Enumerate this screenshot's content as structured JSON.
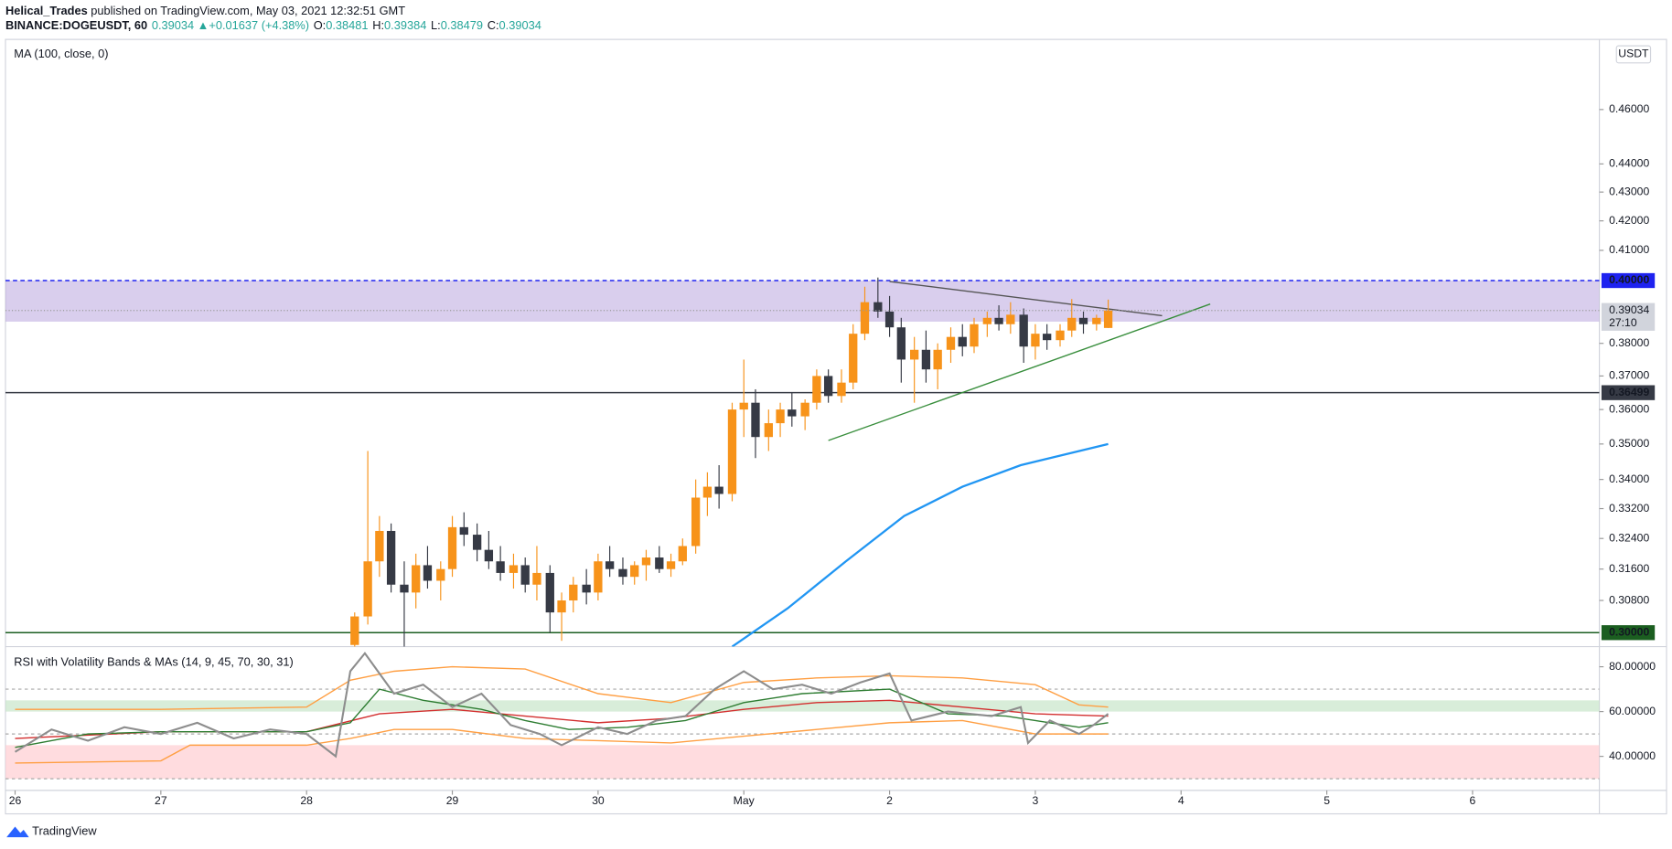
{
  "header": {
    "author": "Helical_Trades",
    "published": " published on TradingView.com, May 03, 2021 12:32:51 GMT",
    "symbol": "BINANCE:DOGEUSDT, 60",
    "arrow": "▲",
    "change": "+0.01637 (+4.38%)",
    "o": "O:",
    "h": "H:",
    "l": "L:",
    "c": "C:"
  },
  "footer": "TradingView",
  "chart_data": [
    {
      "type": "candlestick",
      "legend": "MA (100, close, 0)",
      "currency": "USDT",
      "countdown": "27:10",
      "log_scale": true,
      "x": [
        2.33,
        2.42,
        2.5,
        2.58,
        2.67,
        2.75,
        2.83,
        2.92,
        3,
        3.08,
        3.17,
        3.25,
        3.33,
        3.42,
        3.5,
        3.58,
        3.67,
        3.75,
        3.83,
        3.92,
        4,
        4.08,
        4.17,
        4.25,
        4.33,
        4.42,
        4.5,
        4.58,
        4.67,
        4.75,
        4.83,
        4.92,
        5,
        5.08,
        5.17,
        5.25,
        5.33,
        5.42,
        5.5,
        5.58,
        5.67,
        5.75,
        5.83,
        5.92,
        6,
        6.08,
        6.17,
        6.25,
        6.33,
        6.42,
        6.5,
        6.58,
        6.67,
        6.75,
        6.83,
        6.92,
        7,
        7.08,
        7.17,
        7.25,
        7.33,
        7.42,
        7.5
      ],
      "open": [
        0.297,
        0.304,
        0.318,
        0.326,
        0.312,
        0.31,
        0.317,
        0.313,
        0.316,
        0.327,
        0.325,
        0.321,
        0.318,
        0.315,
        0.317,
        0.312,
        0.315,
        0.305,
        0.308,
        0.312,
        0.31,
        0.318,
        0.316,
        0.314,
        0.317,
        0.319,
        0.316,
        0.318,
        0.322,
        0.335,
        0.338,
        0.336,
        0.36,
        0.362,
        0.352,
        0.356,
        0.36,
        0.358,
        0.362,
        0.37,
        0.364,
        0.368,
        0.383,
        0.393,
        0.39,
        0.385,
        0.375,
        0.378,
        0.372,
        0.378,
        0.382,
        0.379,
        0.386,
        0.388,
        0.386,
        0.389,
        0.379,
        0.383,
        0.381,
        0.384,
        0.388,
        0.386,
        0.38481
      ],
      "high": [
        0.305,
        0.348,
        0.33,
        0.328,
        0.318,
        0.32,
        0.322,
        0.318,
        0.33,
        0.331,
        0.328,
        0.326,
        0.322,
        0.32,
        0.319,
        0.322,
        0.317,
        0.31,
        0.314,
        0.316,
        0.32,
        0.322,
        0.319,
        0.318,
        0.321,
        0.322,
        0.32,
        0.324,
        0.34,
        0.342,
        0.344,
        0.362,
        0.375,
        0.366,
        0.36,
        0.362,
        0.365,
        0.363,
        0.372,
        0.372,
        0.372,
        0.386,
        0.398,
        0.401,
        0.395,
        0.388,
        0.382,
        0.384,
        0.38,
        0.385,
        0.386,
        0.388,
        0.39,
        0.392,
        0.393,
        0.391,
        0.386,
        0.386,
        0.386,
        0.394,
        0.39,
        0.389,
        0.39384
      ],
      "low": [
        0.296,
        0.302,
        0.314,
        0.31,
        0.296,
        0.306,
        0.311,
        0.308,
        0.314,
        0.322,
        0.318,
        0.316,
        0.313,
        0.311,
        0.31,
        0.308,
        0.3,
        0.298,
        0.305,
        0.307,
        0.308,
        0.314,
        0.312,
        0.312,
        0.313,
        0.315,
        0.314,
        0.317,
        0.32,
        0.33,
        0.332,
        0.334,
        0.352,
        0.346,
        0.348,
        0.352,
        0.355,
        0.354,
        0.36,
        0.362,
        0.362,
        0.366,
        0.381,
        0.388,
        0.382,
        0.368,
        0.362,
        0.368,
        0.366,
        0.374,
        0.376,
        0.377,
        0.382,
        0.384,
        0.383,
        0.374,
        0.375,
        0.378,
        0.379,
        0.382,
        0.383,
        0.384,
        0.38479
      ],
      "close": [
        0.304,
        0.318,
        0.326,
        0.312,
        0.31,
        0.317,
        0.313,
        0.316,
        0.327,
        0.325,
        0.321,
        0.318,
        0.315,
        0.317,
        0.312,
        0.315,
        0.305,
        0.308,
        0.312,
        0.31,
        0.318,
        0.316,
        0.314,
        0.317,
        0.319,
        0.316,
        0.318,
        0.322,
        0.335,
        0.338,
        0.336,
        0.36,
        0.362,
        0.352,
        0.356,
        0.36,
        0.358,
        0.362,
        0.37,
        0.364,
        0.368,
        0.383,
        0.393,
        0.39,
        0.385,
        0.375,
        0.378,
        0.372,
        0.378,
        0.382,
        0.379,
        0.386,
        0.388,
        0.386,
        0.389,
        0.379,
        0.383,
        0.381,
        0.384,
        0.388,
        0.386,
        0.388,
        0.39034
      ],
      "up_color": "#f7931a",
      "down_color": "#363a45",
      "xlim": [
        -0.066,
        10.87
      ],
      "xticks": [
        {
          "value": 0,
          "label": "26"
        },
        {
          "value": 1,
          "label": "27"
        },
        {
          "value": 2,
          "label": "28"
        },
        {
          "value": 3,
          "label": "29"
        },
        {
          "value": 4,
          "label": "30"
        },
        {
          "value": 5,
          "label": "May"
        },
        {
          "value": 6,
          "label": "2"
        },
        {
          "value": 7,
          "label": "3"
        },
        {
          "value": 8,
          "label": "4"
        },
        {
          "value": 9,
          "label": "5"
        },
        {
          "value": 10,
          "label": "6"
        }
      ],
      "ylim": [
        0.2966,
        0.4867
      ],
      "yticks": [
        {
          "value": 0.46,
          "label": "0.46000"
        },
        {
          "value": 0.44,
          "label": "0.44000"
        },
        {
          "value": 0.43,
          "label": "0.43000"
        },
        {
          "value": 0.42,
          "label": "0.42000"
        },
        {
          "value": 0.41,
          "label": "0.41000"
        },
        {
          "value": 0.38,
          "label": "0.38000"
        },
        {
          "value": 0.37,
          "label": "0.37000"
        },
        {
          "value": 0.36,
          "label": "0.36000"
        },
        {
          "value": 0.35,
          "label": "0.35000"
        },
        {
          "value": 0.34,
          "label": "0.34000"
        },
        {
          "value": 0.332,
          "label": "0.33200"
        },
        {
          "value": 0.324,
          "label": "0.32400"
        },
        {
          "value": 0.316,
          "label": "0.31600"
        },
        {
          "value": 0.308,
          "label": "0.30800"
        }
      ],
      "ma": {
        "color": "#2196f3",
        "x": [
          4.92,
          5.3,
          5.7,
          6.1,
          6.5,
          6.9,
          7.5
        ],
        "values": [
          0.2966,
          0.306,
          0.318,
          0.33,
          0.338,
          0.344,
          0.35
        ]
      },
      "levels": [
        {
          "value": 0.4,
          "label": "0.40000",
          "color": "#1e22f0"
        },
        {
          "value": 0.36499,
          "label": "0.36499",
          "color": "#363a45"
        },
        {
          "value": 0.3,
          "label": "0.30000",
          "color": "#1b5e20"
        }
      ],
      "zone": {
        "range": [
          0.3868,
          0.4
        ],
        "color": "#b39ddb"
      },
      "trendlines": [
        {
          "x": [
            6.0,
            7.87
          ],
          "y": [
            0.3997,
            0.3887
          ],
          "color": "#555555"
        },
        {
          "x": [
            5.58,
            8.2
          ],
          "y": [
            0.351,
            0.3924
          ],
          "color": "#388e3c"
        }
      ]
    },
    {
      "type": "line",
      "title": "RSI with Volatility Bands & MAs (14, 9, 45, 70, 30, 31)",
      "xlim": [
        -0.066,
        10.87
      ],
      "ylim": [
        24.8,
        89
      ],
      "yticks": [
        {
          "value": 40,
          "label": "40.00000"
        },
        {
          "value": 60,
          "label": "60.00000"
        },
        {
          "value": 80,
          "label": "80.00000"
        }
      ],
      "hlines": [
        70,
        50,
        30
      ],
      "bands": [
        {
          "range": [
            60,
            65
          ],
          "color": "#c8e6c9"
        },
        {
          "range": [
            30,
            45
          ],
          "color": "#ffcdd2"
        }
      ],
      "series": [
        {
          "color": "#ff9f43",
          "x": [
            0,
            1,
            2,
            2.3,
            2.6,
            3,
            3.5,
            4,
            4.5,
            5,
            5.5,
            6,
            6.5,
            7,
            7.3,
            7.5
          ],
          "values": [
            61,
            61,
            62,
            74,
            78,
            80,
            79,
            68,
            64,
            73,
            75,
            76,
            75,
            72,
            63,
            62
          ]
        },
        {
          "color": "#ff9f43",
          "x": [
            0,
            1,
            1.2,
            2,
            2.3,
            2.6,
            3,
            3.5,
            4,
            4.5,
            5,
            5.5,
            6,
            6.5,
            7,
            7.5
          ],
          "values": [
            37,
            38,
            45,
            45,
            48,
            52,
            52,
            48,
            47,
            46,
            49,
            52,
            55,
            56,
            50,
            50
          ]
        },
        {
          "color": "#d32f2f",
          "x": [
            0,
            1,
            2,
            2.5,
            3,
            3.5,
            4,
            4.5,
            5,
            5.5,
            6,
            6.5,
            7,
            7.5
          ],
          "values": [
            48,
            51,
            51,
            59,
            61,
            58,
            55,
            57,
            61,
            64,
            65,
            62,
            59,
            58
          ]
        },
        {
          "color": "#2e7d32",
          "x": [
            0,
            0.5,
            1,
            1.5,
            2,
            2.3,
            2.5,
            2.8,
            3.2,
            3.5,
            3.8,
            4.2,
            4.6,
            5,
            5.4,
            6,
            6.4,
            6.8,
            7,
            7.3,
            7.5
          ],
          "values": [
            44,
            50,
            51,
            51,
            51,
            55,
            70,
            65,
            61,
            56,
            52,
            53,
            56,
            64,
            68,
            70,
            59,
            58,
            56,
            53,
            55
          ]
        },
        {
          "color": "#8d8d8d",
          "x": [
            0,
            0.25,
            0.5,
            0.75,
            1,
            1.25,
            1.5,
            1.75,
            2,
            2.2,
            2.3,
            2.4,
            2.6,
            2.8,
            3,
            3.2,
            3.4,
            3.6,
            3.75,
            4,
            4.2,
            4.4,
            4.6,
            4.8,
            5,
            5.2,
            5.4,
            5.6,
            5.8,
            6,
            6.15,
            6.4,
            6.7,
            6.9,
            6.95,
            7.1,
            7.3,
            7.4,
            7.5
          ],
          "values": [
            42,
            52,
            47,
            53,
            50,
            55,
            48,
            52,
            50,
            40,
            78,
            86,
            68,
            72,
            62,
            68,
            54,
            50,
            45,
            53,
            50,
            56,
            58,
            70,
            78,
            70,
            72,
            68,
            73,
            77,
            56,
            60,
            58,
            62,
            46,
            56,
            50,
            54,
            59
          ]
        }
      ]
    }
  ]
}
